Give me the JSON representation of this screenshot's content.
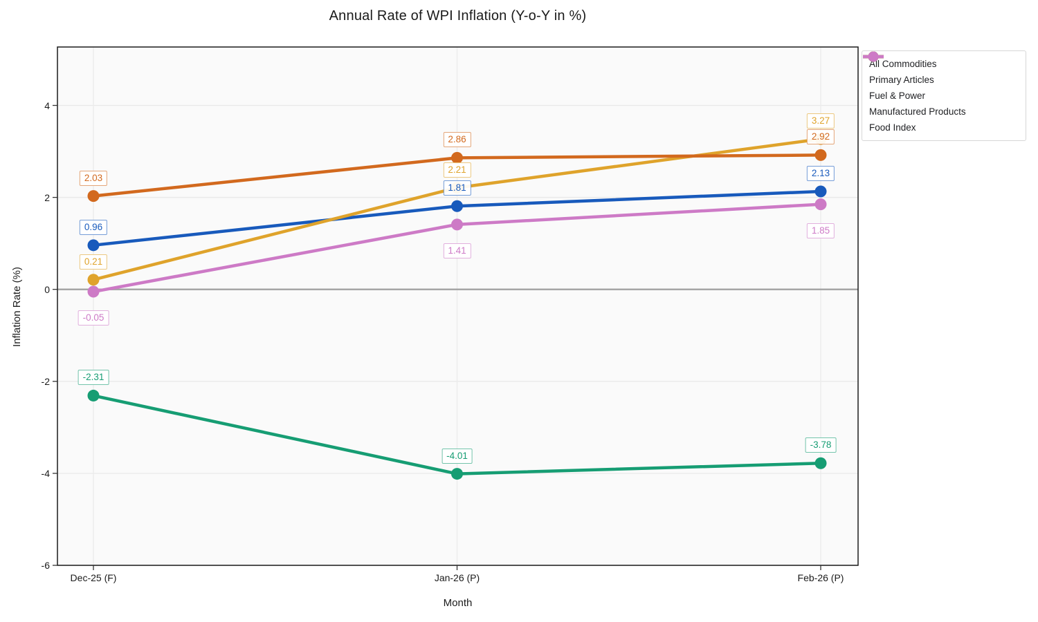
{
  "title": "Annual Rate of WPI Inflation (Y-o-Y in %)",
  "chart_data": {
    "type": "line",
    "title": "Annual Rate of WPI Inflation (Y-o-Y in %)",
    "xlabel": "Month",
    "ylabel": "Inflation Rate (%)",
    "categories": [
      "Dec-25 (F)",
      "Jan-26 (P)",
      "Feb-26 (P)"
    ],
    "ylim": [
      -6,
      5.27
    ],
    "yticks": [
      4,
      2,
      0,
      -2,
      -4,
      -6
    ],
    "grid": true,
    "zero_line": true,
    "legend_position": "top-right-outside",
    "series": [
      {
        "name": "All Commodities",
        "color": "#185abc",
        "values": [
          0.96,
          1.81,
          2.13
        ],
        "labels": [
          "0.96",
          "1.81",
          "2.13"
        ],
        "label_side": [
          "above",
          "above",
          "above"
        ]
      },
      {
        "name": "Primary Articles",
        "color": "#dfa32b",
        "values": [
          0.21,
          2.21,
          3.27
        ],
        "labels": [
          "0.21",
          "2.21",
          "3.27"
        ],
        "label_side": [
          "above",
          "above",
          "above"
        ]
      },
      {
        "name": "Fuel & Power",
        "color": "#169d73",
        "values": [
          -2.31,
          -4.01,
          -3.78
        ],
        "labels": [
          "-2.31",
          "-4.01",
          "-3.78"
        ],
        "label_side": [
          "above",
          "above",
          "above"
        ]
      },
      {
        "name": "Manufactured Products",
        "color": "#d2691e",
        "values": [
          2.03,
          2.86,
          2.92
        ],
        "labels": [
          "2.03",
          "2.86",
          "2.92"
        ],
        "label_side": [
          "above",
          "above",
          "above"
        ]
      },
      {
        "name": "Food Index",
        "color": "#cd7ac6",
        "values": [
          -0.05,
          1.41,
          1.85
        ],
        "labels": [
          "-0.05",
          "1.41",
          "1.85"
        ],
        "label_side": [
          "below",
          "below",
          "below"
        ]
      }
    ]
  }
}
